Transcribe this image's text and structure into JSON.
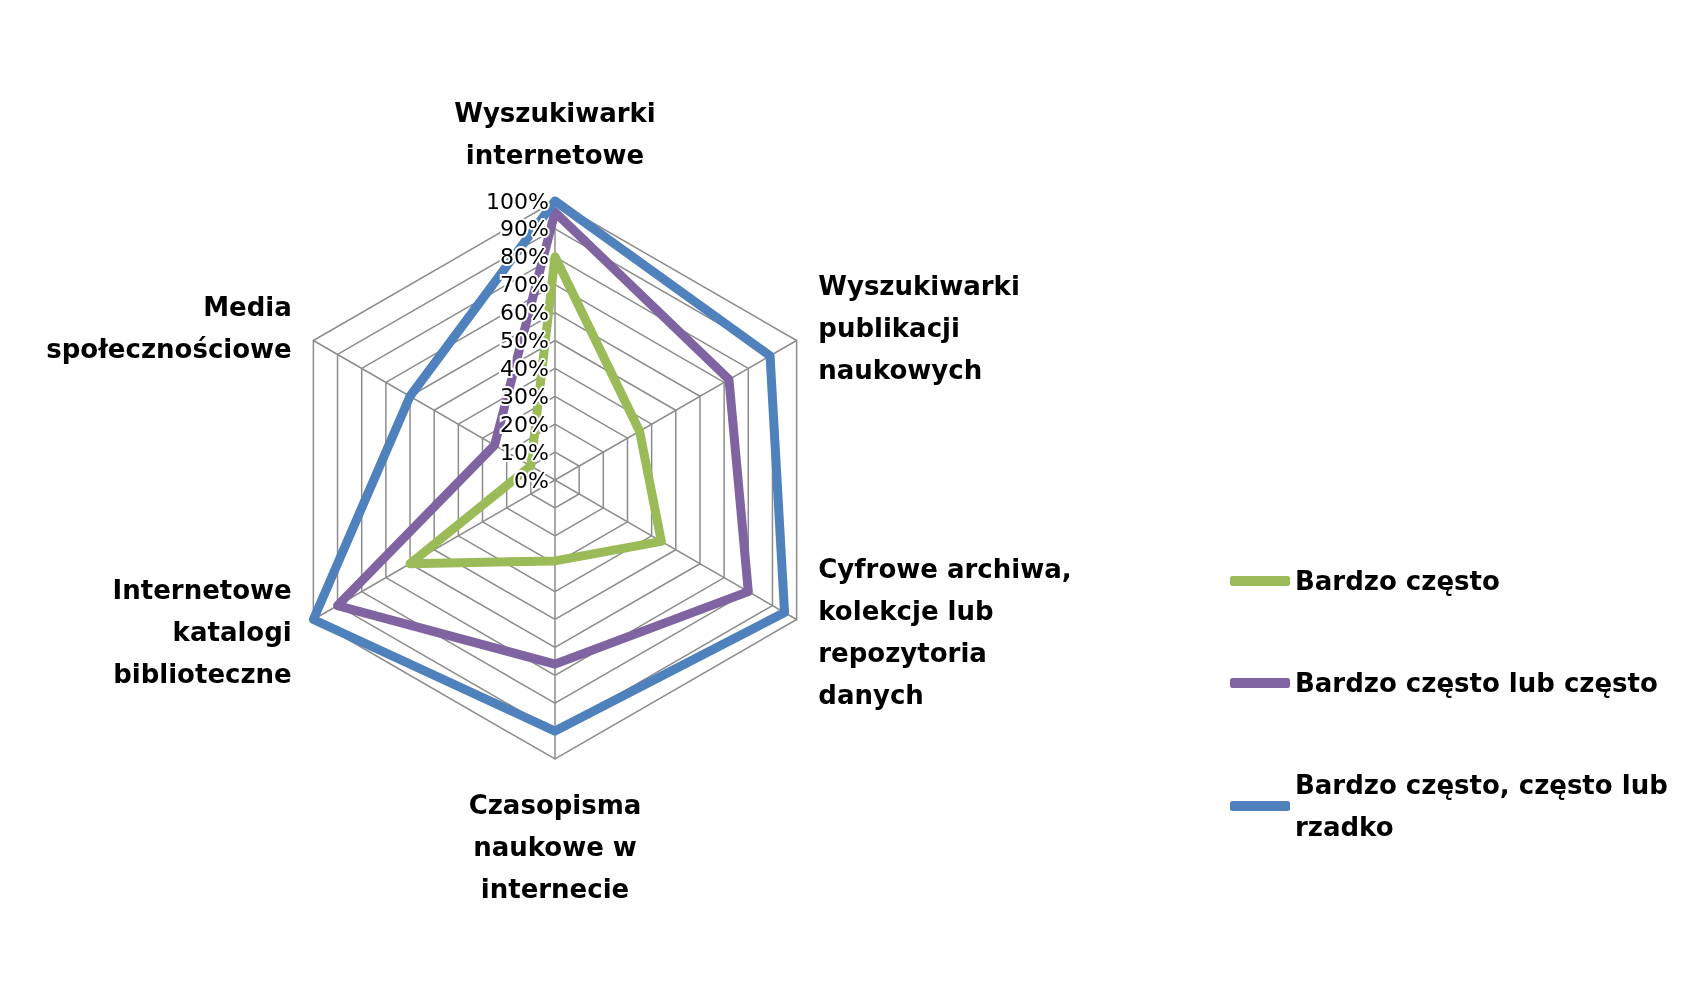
{
  "chart_data": {
    "type": "radar",
    "categories": [
      "Wyszukiwarki internetowe",
      "Wyszukiwarki publikacji naukowych",
      "Cyfrowe archiwa, kolekcje lub repozytoria danych",
      "Czasopisma naukowe w internecie",
      "Internetowe katalogi biblioteczne",
      "Media społecznościowe"
    ],
    "series": [
      {
        "name": "Bardzo często",
        "color": "#9bbb59",
        "values": [
          80,
          35,
          44,
          29,
          60,
          10
        ]
      },
      {
        "name": "Bardzo często lub często",
        "color": "#8064a2",
        "values": [
          96,
          72,
          80,
          66,
          90,
          25
        ]
      },
      {
        "name": "Bardzo często, często lub rzadko",
        "color": "#4f81bd",
        "values": [
          100,
          89,
          95,
          90,
          100,
          60
        ]
      }
    ],
    "ylim": [
      0,
      100
    ],
    "yticks": [
      {
        "value": 0,
        "label": "0%"
      },
      {
        "value": 10,
        "label": "10%"
      },
      {
        "value": 20,
        "label": "20%"
      },
      {
        "value": 30,
        "label": "30%"
      },
      {
        "value": 40,
        "label": "40%"
      },
      {
        "value": 50,
        "label": "50%"
      },
      {
        "value": 60,
        "label": "60%"
      },
      {
        "value": 70,
        "label": "70%"
      },
      {
        "value": 80,
        "label": "80%"
      },
      {
        "value": 90,
        "label": "90%"
      },
      {
        "value": 100,
        "label": "100%"
      }
    ],
    "grid": true,
    "legend": "right",
    "marker": "none",
    "line_style": "solid"
  }
}
